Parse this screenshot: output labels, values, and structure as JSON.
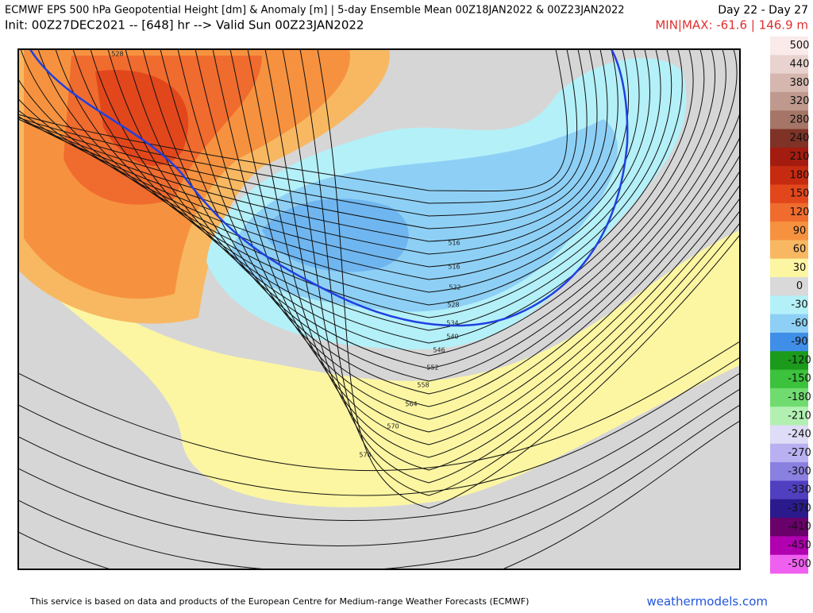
{
  "header": {
    "title": "ECMWF EPS 500 hPa Geopotential Height [dm] & Anomaly [m] | 5-day Ensemble Mean 00Z18JAN2022 & 00Z23JAN2022",
    "days": "Day 22 - Day 27",
    "init": "Init: 00Z27DEC2021 -- [648] hr --> Valid Sun 00Z23JAN2022",
    "minmax": "MIN|MAX: -61.6 | 146.9 m"
  },
  "colorbar": {
    "labels": [
      500,
      440,
      380,
      320,
      280,
      240,
      210,
      180,
      150,
      120,
      90,
      60,
      30,
      0,
      -30,
      -60,
      -90,
      -120,
      -150,
      -180,
      -210,
      -240,
      -270,
      -300,
      -330,
      -370,
      -410,
      -450,
      -500
    ],
    "colors": [
      "#fbeaea",
      "#e9d3cf",
      "#d5b7af",
      "#bf998e",
      "#a57667",
      "#7e3326",
      "#a31c0f",
      "#c62a10",
      "#e2471c",
      "#f06b2e",
      "#f6923f",
      "#f8b862",
      "#fcf6a2",
      "#d9d9d9",
      "#b4f0f8",
      "#8ed0f5",
      "#3f8ee8",
      "#1c9a1c",
      "#3cc23c",
      "#70dc70",
      "#b2f0b2",
      "#dedcf6",
      "#b8b0f0",
      "#8a80e0",
      "#5040c0",
      "#2a1a8c",
      "#6a006a",
      "#b000b0",
      "#f060f0"
    ]
  },
  "map": {
    "contour_labels": [
      "528",
      "516",
      "516",
      "522",
      "528",
      "534",
      "540",
      "546",
      "552",
      "558",
      "564",
      "570",
      "576"
    ]
  },
  "footer": {
    "credit": "This service is based on data and products of the European Centre for Medium-range Weather Forecasts (ECMWF)",
    "site": "weathermodels.com"
  }
}
